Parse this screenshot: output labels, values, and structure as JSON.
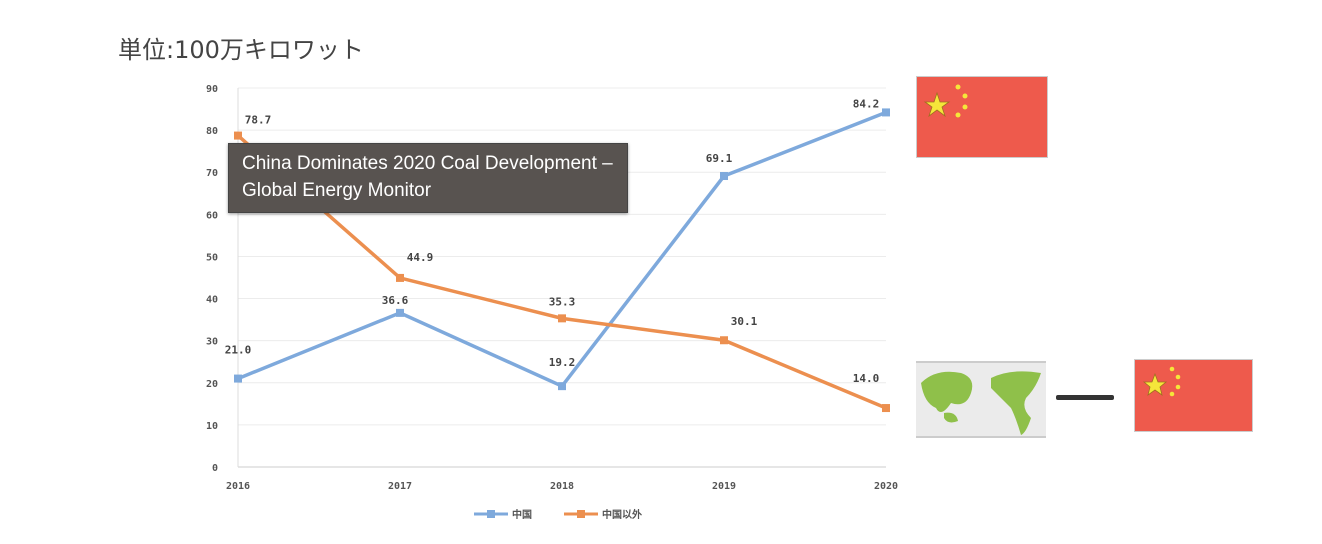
{
  "unit_label": "単位:100万キロワット",
  "tooltip": {
    "line1": "China Dominates 2020 Coal Development –",
    "line2": "Global Energy Monitor"
  },
  "icons": {
    "china_flag": "china-flag-icon",
    "world_map": "world-map-icon",
    "minus": "minus-icon"
  },
  "chart_data": {
    "type": "line",
    "x": [
      "2016",
      "2017",
      "2018",
      "2019",
      "2020"
    ],
    "ylim": [
      0,
      90
    ],
    "yticks": [
      0,
      10,
      20,
      30,
      40,
      50,
      60,
      70,
      80,
      90
    ],
    "grid": true,
    "legend_placement": "bottom",
    "series": [
      {
        "name": "中国",
        "color": "#7ea9dc",
        "values": [
          21.0,
          36.6,
          19.2,
          69.1,
          84.2
        ],
        "labels": [
          "21.0",
          "36.6",
          "19.2",
          "69.1",
          "84.2"
        ]
      },
      {
        "name": "中国以外",
        "color": "#ec8f4f",
        "values": [
          78.7,
          44.9,
          35.3,
          30.1,
          14.0
        ],
        "labels": [
          "78.7",
          "44.9",
          "35.3",
          "30.1",
          "14.0"
        ]
      }
    ]
  }
}
